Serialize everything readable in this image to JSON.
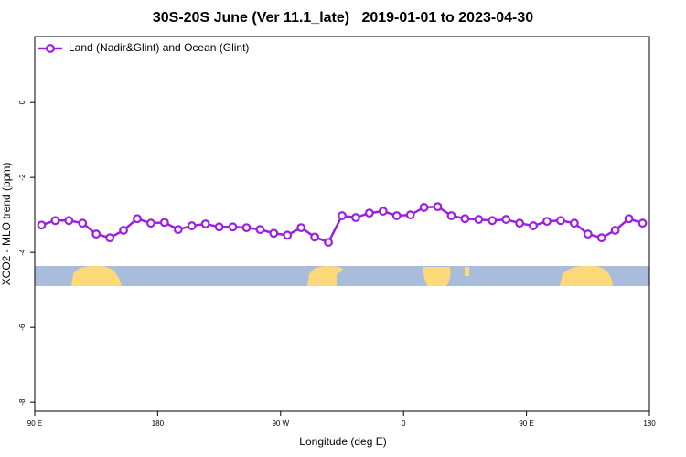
{
  "chart_data": {
    "type": "line",
    "title": "30S-20S June (Ver 11.1_late)   2019-01-01 to 2023-04-30",
    "x_label": "Longitude (deg E)",
    "y_label": "XCO2 - MLO trend (ppm)",
    "legend": "top-left",
    "x": [
      95,
      105,
      115,
      125,
      135,
      145,
      155,
      165,
      175,
      185,
      195,
      205,
      215,
      225,
      235,
      245,
      255,
      265,
      275,
      285,
      295,
      305,
      315,
      325,
      335,
      345,
      355,
      365,
      375,
      385,
      395,
      405,
      415,
      425,
      435,
      445,
      455,
      465,
      475,
      485,
      495,
      505,
      515,
      525,
      535
    ],
    "series": [
      {
        "name": "Land (Nadir&Glint) and Ocean (Glint)",
        "color": "#9b1fe0",
        "values": [
          -3.27,
          -3.15,
          -3.15,
          -3.22,
          -3.51,
          -3.61,
          -3.41,
          -3.1,
          -3.22,
          -3.2,
          -3.39,
          -3.29,
          -3.24,
          -3.32,
          -3.32,
          -3.34,
          -3.39,
          -3.49,
          -3.54,
          -3.34,
          -3.59,
          -3.73,
          -3.02,
          -3.07,
          -2.95,
          -2.9,
          -3.02,
          -3.0,
          -2.8,
          -2.78,
          -3.02,
          -3.1,
          -3.12,
          -3.15,
          -3.12,
          -3.22,
          -3.29,
          -3.17,
          -3.15,
          -3.22,
          -3.51,
          -3.61,
          -3.41,
          -3.1,
          -3.22
        ]
      }
    ],
    "xlim": [
      90,
      540
    ],
    "xticks": [
      {
        "value": 90,
        "label": "90 E"
      },
      180,
      {
        "value": 270,
        "label": "90 W"
      },
      {
        "value": 360,
        "label": "0"
      },
      {
        "value": 450,
        "label": "90 E"
      },
      {
        "value": 540,
        "label": "180"
      }
    ],
    "ylim": [
      -8.24,
      1.76
    ],
    "yticks": [
      0,
      -2,
      -4,
      -6,
      -8
    ]
  }
}
